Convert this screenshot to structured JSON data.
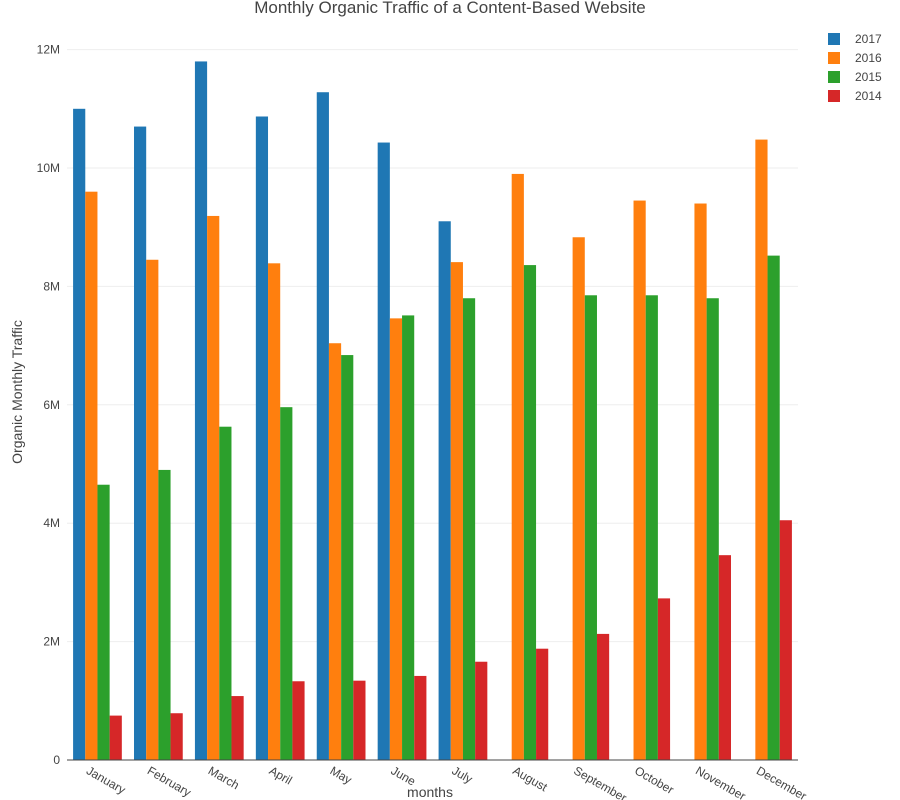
{
  "chart_data": {
    "type": "bar",
    "title": "Monthly Organic Traffic of a Content-Based Website",
    "xlabel": "months",
    "ylabel": "Organic Monthly Traffic",
    "categories": [
      "January",
      "February",
      "March",
      "April",
      "May",
      "June",
      "July",
      "August",
      "September",
      "October",
      "November",
      "December"
    ],
    "ylim": [
      0,
      12500000
    ],
    "yticks": [
      0,
      2000000,
      4000000,
      6000000,
      8000000,
      10000000,
      12000000
    ],
    "ytick_labels": [
      "0",
      "2M",
      "4M",
      "6M",
      "8M",
      "10M",
      "12M"
    ],
    "grid": true,
    "legend_position": "top-right",
    "series": [
      {
        "name": "2017",
        "color": "#1f77b4",
        "values": [
          11000000,
          10700000,
          11800000,
          10870000,
          11280000,
          10430000,
          9100000,
          null,
          null,
          null,
          null,
          null
        ]
      },
      {
        "name": "2016",
        "color": "#ff7f0e",
        "values": [
          9600000,
          8450000,
          9190000,
          8390000,
          7040000,
          7460000,
          8410000,
          9900000,
          8830000,
          9450000,
          9400000,
          10480000
        ]
      },
      {
        "name": "2015",
        "color": "#2ca02c",
        "values": [
          4650000,
          4900000,
          5630000,
          5960000,
          6840000,
          7510000,
          7800000,
          8360000,
          7850000,
          7850000,
          7800000,
          8520000
        ]
      },
      {
        "name": "2014",
        "color": "#d62728",
        "values": [
          750000,
          790000,
          1080000,
          1330000,
          1340000,
          1420000,
          1660000,
          1880000,
          2130000,
          2730000,
          3460000,
          4050000
        ]
      }
    ],
    "legend_order": [
      "2017",
      "2016",
      "2015",
      "2014"
    ]
  }
}
